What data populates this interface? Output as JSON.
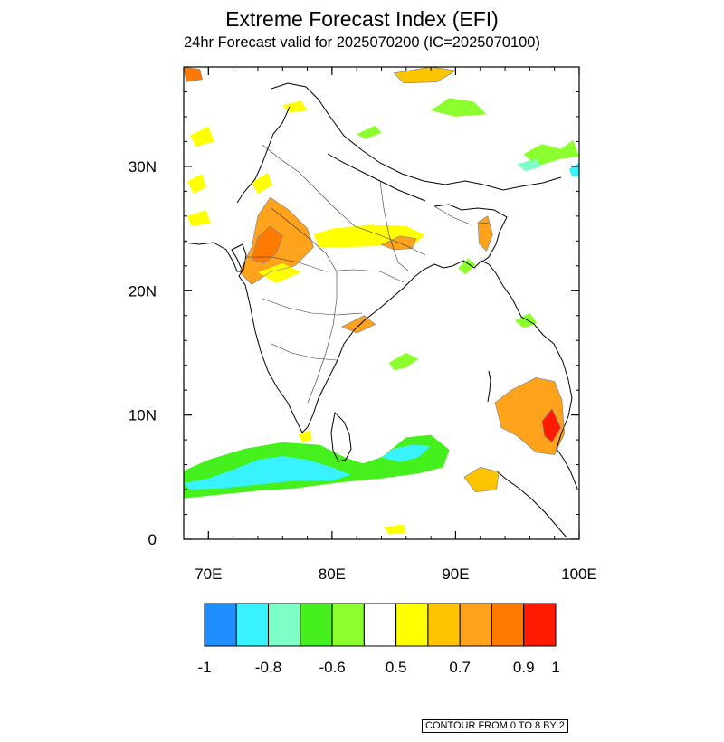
{
  "title": "Extreme Forecast Index (EFI)",
  "subtitle": "24hr Forecast valid for 2025070200 (IC=2025070100)",
  "map": {
    "lon_range": [
      68,
      100
    ],
    "lat_range": [
      0,
      38
    ],
    "lon_ticks": [
      {
        "value": 70,
        "label": "70E"
      },
      {
        "value": 80,
        "label": "80E"
      },
      {
        "value": 90,
        "label": "90E"
      },
      {
        "value": 100,
        "label": "100E"
      }
    ],
    "lat_ticks": [
      {
        "value": 0,
        "label": "0"
      },
      {
        "value": 10,
        "label": "10N"
      },
      {
        "value": 20,
        "label": "20N"
      },
      {
        "value": 30,
        "label": "30N"
      }
    ]
  },
  "colorbar": {
    "colors": [
      "#1f8fff",
      "#39f2ff",
      "#7fffc8",
      "#45f01d",
      "#8cff2e",
      "#ffffff",
      "#ffff00",
      "#ffc400",
      "#ffa21c",
      "#ff7a00",
      "#ff1a00"
    ],
    "labels": [
      {
        "text": "-1",
        "at_edge": 0
      },
      {
        "text": "-0.8",
        "at_edge": 2
      },
      {
        "text": "-0.6",
        "at_edge": 4
      },
      {
        "text": "0.5",
        "at_edge": 6
      },
      {
        "text": "0.7",
        "at_edge": 8
      },
      {
        "text": "0.9",
        "at_edge": 10
      },
      {
        "text": "1",
        "at_edge": 11
      }
    ]
  },
  "contour_note": "CONTOUR FROM 0 TO 8 BY 2",
  "efi_regions": [
    {
      "name": "arabian-sea-negative",
      "value": -0.7,
      "points": [
        [
          68,
          5.5
        ],
        [
          70,
          6.4
        ],
        [
          73,
          7.3
        ],
        [
          76,
          7.8
        ],
        [
          79,
          7.6
        ],
        [
          81,
          6.6
        ],
        [
          82.5,
          6.1
        ],
        [
          84,
          6.6
        ],
        [
          86,
          8.2
        ],
        [
          88,
          8.4
        ],
        [
          89.5,
          7.2
        ],
        [
          89,
          5.8
        ],
        [
          87,
          5.3
        ],
        [
          84,
          4.9
        ],
        [
          82,
          4.7
        ],
        [
          80,
          4.5
        ],
        [
          77,
          4.1
        ],
        [
          74,
          3.9
        ],
        [
          71,
          3.6
        ],
        [
          68,
          3.3
        ]
      ]
    },
    {
      "name": "arabian-sea-strong-negative",
      "value": -0.9,
      "points": [
        [
          68,
          4.5
        ],
        [
          70,
          4.9
        ],
        [
          72,
          5.6
        ],
        [
          74,
          6.4
        ],
        [
          76,
          6.7
        ],
        [
          78,
          6.4
        ],
        [
          80,
          5.8
        ],
        [
          81.5,
          5.2
        ],
        [
          80,
          4.7
        ],
        [
          77,
          4.7
        ],
        [
          74,
          4.4
        ],
        [
          71,
          4.1
        ],
        [
          68.5,
          4.0
        ]
      ]
    },
    {
      "name": "bay-of-bengal-negative",
      "value": -0.85,
      "points": [
        [
          84,
          6.6
        ],
        [
          85,
          7.3
        ],
        [
          86.5,
          7.6
        ],
        [
          88,
          7.5
        ],
        [
          87,
          6.6
        ],
        [
          85.5,
          6.2
        ]
      ]
    },
    {
      "name": "gujarat-rajasthan-positive",
      "value": 0.7,
      "points": [
        [
          72.5,
          21.5
        ],
        [
          73.5,
          23.5
        ],
        [
          74,
          26
        ],
        [
          75,
          27.5
        ],
        [
          76.5,
          26.5
        ],
        [
          78,
          25
        ],
        [
          78.5,
          23.5
        ],
        [
          77,
          22
        ],
        [
          75,
          21.5
        ],
        [
          73.5,
          20.5
        ]
      ]
    },
    {
      "name": "gujarat-core-positive",
      "value": 0.85,
      "points": [
        [
          73.5,
          22.5
        ],
        [
          74,
          24.3
        ],
        [
          75,
          25.2
        ],
        [
          76,
          24.4
        ],
        [
          75.5,
          23
        ],
        [
          74.5,
          22.2
        ]
      ]
    },
    {
      "name": "central-india-band",
      "value": 0.55,
      "points": [
        [
          78.5,
          24.5
        ],
        [
          80,
          25
        ],
        [
          83,
          25.3
        ],
        [
          86,
          25.2
        ],
        [
          87.5,
          24.5
        ],
        [
          86.5,
          23.5
        ],
        [
          84,
          23.6
        ],
        [
          81,
          23.5
        ],
        [
          79,
          23.5
        ]
      ]
    },
    {
      "name": "jharkhand-positive",
      "value": 0.7,
      "points": [
        [
          84,
          23.7
        ],
        [
          85.5,
          24.4
        ],
        [
          86.8,
          24.2
        ],
        [
          86.5,
          23.4
        ],
        [
          85,
          23.3
        ]
      ]
    },
    {
      "name": "northeast-positive",
      "value": 0.75,
      "points": [
        [
          91.8,
          25.5
        ],
        [
          92.6,
          26
        ],
        [
          93,
          24.5
        ],
        [
          92.5,
          23.2
        ],
        [
          91.9,
          23.8
        ]
      ]
    },
    {
      "name": "punjab-positive",
      "value": 0.55,
      "points": [
        [
          73.5,
          28.7
        ],
        [
          74.8,
          29.5
        ],
        [
          75.2,
          28.5
        ],
        [
          74,
          27.8
        ]
      ]
    },
    {
      "name": "northwest-coast-positive",
      "value": 0.55,
      "points": [
        [
          68.3,
          28.8
        ],
        [
          69.5,
          29.4
        ],
        [
          69.8,
          28.3
        ],
        [
          68.8,
          27.8
        ]
      ]
    },
    {
      "name": "mid-india-positive",
      "value": 0.55,
      "points": [
        [
          74,
          21.5
        ],
        [
          76,
          22.2
        ],
        [
          77.5,
          21.5
        ],
        [
          75.5,
          20.6
        ]
      ]
    },
    {
      "name": "andhra-positive",
      "value": 0.7,
      "points": [
        [
          80.8,
          17.1
        ],
        [
          82.6,
          18
        ],
        [
          83.5,
          17.3
        ],
        [
          82,
          16.6
        ]
      ]
    },
    {
      "name": "andaman-positive",
      "value": 0.7,
      "points": [
        [
          93.2,
          11
        ],
        [
          94.5,
          12
        ],
        [
          96.5,
          13
        ],
        [
          98,
          12.7
        ],
        [
          98.6,
          11.2
        ],
        [
          98.8,
          8.5
        ],
        [
          98,
          6.8
        ],
        [
          96.5,
          7
        ],
        [
          95,
          8.3
        ],
        [
          93.7,
          9
        ]
      ]
    },
    {
      "name": "andaman-core",
      "value": 0.95,
      "points": [
        [
          97,
          9.5
        ],
        [
          97.8,
          10.5
        ],
        [
          98.5,
          9
        ],
        [
          97.8,
          7.8
        ],
        [
          97.2,
          8.3
        ]
      ]
    },
    {
      "name": "sumatra-positive",
      "value": 0.65,
      "points": [
        [
          90.7,
          5
        ],
        [
          92,
          5.8
        ],
        [
          93.5,
          5.4
        ],
        [
          93.3,
          4
        ],
        [
          91.6,
          3.8
        ]
      ]
    },
    {
      "name": "north-west-corner",
      "value": 0.85,
      "points": [
        [
          68,
          38
        ],
        [
          69.3,
          37.8
        ],
        [
          69.5,
          37
        ],
        [
          68.2,
          36.8
        ]
      ]
    },
    {
      "name": "tibet-positive",
      "value": 0.6,
      "points": [
        [
          85,
          37.5
        ],
        [
          88,
          38
        ],
        [
          90,
          37.7
        ],
        [
          88.5,
          36.8
        ],
        [
          85.8,
          36.7
        ]
      ]
    },
    {
      "name": "kashmir-positive",
      "value": 0.55,
      "points": [
        [
          76,
          34.9
        ],
        [
          77.5,
          35.3
        ],
        [
          78,
          34.5
        ],
        [
          76.6,
          34.3
        ]
      ]
    },
    {
      "name": "karachi-positive",
      "value": 0.55,
      "points": [
        [
          68.3,
          26
        ],
        [
          69.8,
          26.5
        ],
        [
          70.2,
          25.4
        ],
        [
          68.6,
          25.2
        ]
      ]
    },
    {
      "name": "pakistan-positive",
      "value": 0.55,
      "points": [
        [
          68.5,
          32.5
        ],
        [
          70,
          33.2
        ],
        [
          70.5,
          32
        ],
        [
          69,
          31.6
        ]
      ]
    },
    {
      "name": "kerala-positive",
      "value": 0.55,
      "points": [
        [
          77.3,
          8.4
        ],
        [
          78.2,
          8.8
        ],
        [
          78.4,
          8
        ],
        [
          77.6,
          7.8
        ]
      ]
    },
    {
      "name": "sri-lanka-south-positive",
      "value": 0.55,
      "points": [
        [
          84.2,
          1
        ],
        [
          85.8,
          1.2
        ],
        [
          86,
          0.5
        ],
        [
          84.6,
          0.4
        ]
      ]
    },
    {
      "name": "north-green",
      "value": -0.6,
      "points": [
        [
          88,
          34.5
        ],
        [
          89.5,
          35.5
        ],
        [
          91.5,
          35.2
        ],
        [
          92.5,
          34.2
        ],
        [
          90,
          34
        ]
      ]
    },
    {
      "name": "ne-green",
      "value": -0.6,
      "points": [
        [
          95.5,
          31
        ],
        [
          97,
          31.8
        ],
        [
          98.5,
          31.4
        ],
        [
          99.5,
          32.1
        ],
        [
          100,
          30.8
        ],
        [
          98.5,
          30.6
        ],
        [
          96.5,
          30
        ]
      ]
    },
    {
      "name": "ne-blue",
      "value": -0.9,
      "points": [
        [
          99.2,
          29.8
        ],
        [
          100,
          30.3
        ],
        [
          100,
          29.2
        ],
        [
          99.4,
          29.2
        ]
      ]
    },
    {
      "name": "ne-cyan",
      "value": -0.8,
      "points": [
        [
          95,
          30.2
        ],
        [
          96.5,
          30.6
        ],
        [
          97,
          30
        ],
        [
          95.6,
          29.6
        ]
      ]
    },
    {
      "name": "odisha-green",
      "value": -0.6,
      "points": [
        [
          84.6,
          14.2
        ],
        [
          86,
          15
        ],
        [
          87,
          14.5
        ],
        [
          86,
          13.8
        ],
        [
          85,
          13.6
        ]
      ]
    },
    {
      "name": "bangladesh-green",
      "value": -0.6,
      "points": [
        [
          90.2,
          21.8
        ],
        [
          91,
          22.6
        ],
        [
          91.6,
          22.1
        ],
        [
          90.8,
          21.3
        ]
      ]
    },
    {
      "name": "myanmar-green",
      "value": -0.6,
      "points": [
        [
          94.8,
          17.6
        ],
        [
          96,
          18.2
        ],
        [
          96.6,
          17.4
        ],
        [
          95.5,
          17
        ]
      ]
    },
    {
      "name": "tibet-green-small",
      "value": -0.6,
      "points": [
        [
          82,
          32.6
        ],
        [
          83.5,
          33.3
        ],
        [
          84,
          32.7
        ],
        [
          82.7,
          32.2
        ]
      ]
    }
  ]
}
